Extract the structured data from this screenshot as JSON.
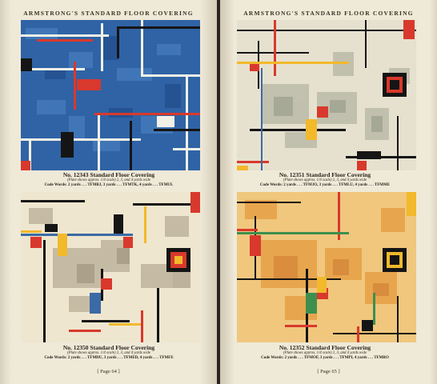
{
  "left_page": {
    "running_head": "ARMSTRONG'S STANDARD FLOOR COVERING",
    "folio": "[ Page 64 ]",
    "plates": [
      {
        "title": "No. 12343 Standard Floor Covering",
        "note": "(Plate shows approx. 1/4 scale) 2, 3, and 4 yards wide",
        "code": "Code Words: 2 yards . . . TFMBJ, 3 yards . . . TFMTK, 4 yards . . . TFMUL"
      },
      {
        "title": "No. 12350 Standard Floor Covering",
        "note": "(Plate shows approx. 1/4 scale) 2, 3, and 4 yards wide",
        "code": "Code Words: 2 yards . . . TFMDU, 3 yards . . . TFMED, 4 yards . . . TFMFE"
      }
    ]
  },
  "right_page": {
    "running_head": "ARMSTRONG'S STANDARD FLOOR COVERING",
    "folio": "[ Page 65 ]",
    "plates": [
      {
        "title": "No. 12351 Standard Floor Covering",
        "note": "(Plate shows approx. 1/4 scale) 2, 3, and 4 yards wide",
        "code": "Code Words: 2 yards . . . TFMJO, 3 yards . . . TFMLU, 4 yards . . . TFMME"
      },
      {
        "title": "No. 12352 Standard Floor Covering",
        "note": "(Plate shows approx. 1/4 scale) 2, 3, and 4 yards wide",
        "code": "Code Words: 2 yards . . . TFMOF, 3 yards . . . TFMPI, 4 yards . . . TFMRO"
      }
    ]
  },
  "colors": {
    "plate_12343_ground": "#2f63a6",
    "plate_12351_ground": "#e6e1cf",
    "plate_12350_ground": "#efe6cf",
    "plate_12352_ground": "#f0c77d",
    "accent_red": "#d8392c",
    "accent_yellow": "#f2b92b",
    "accent_black": "#151515"
  }
}
